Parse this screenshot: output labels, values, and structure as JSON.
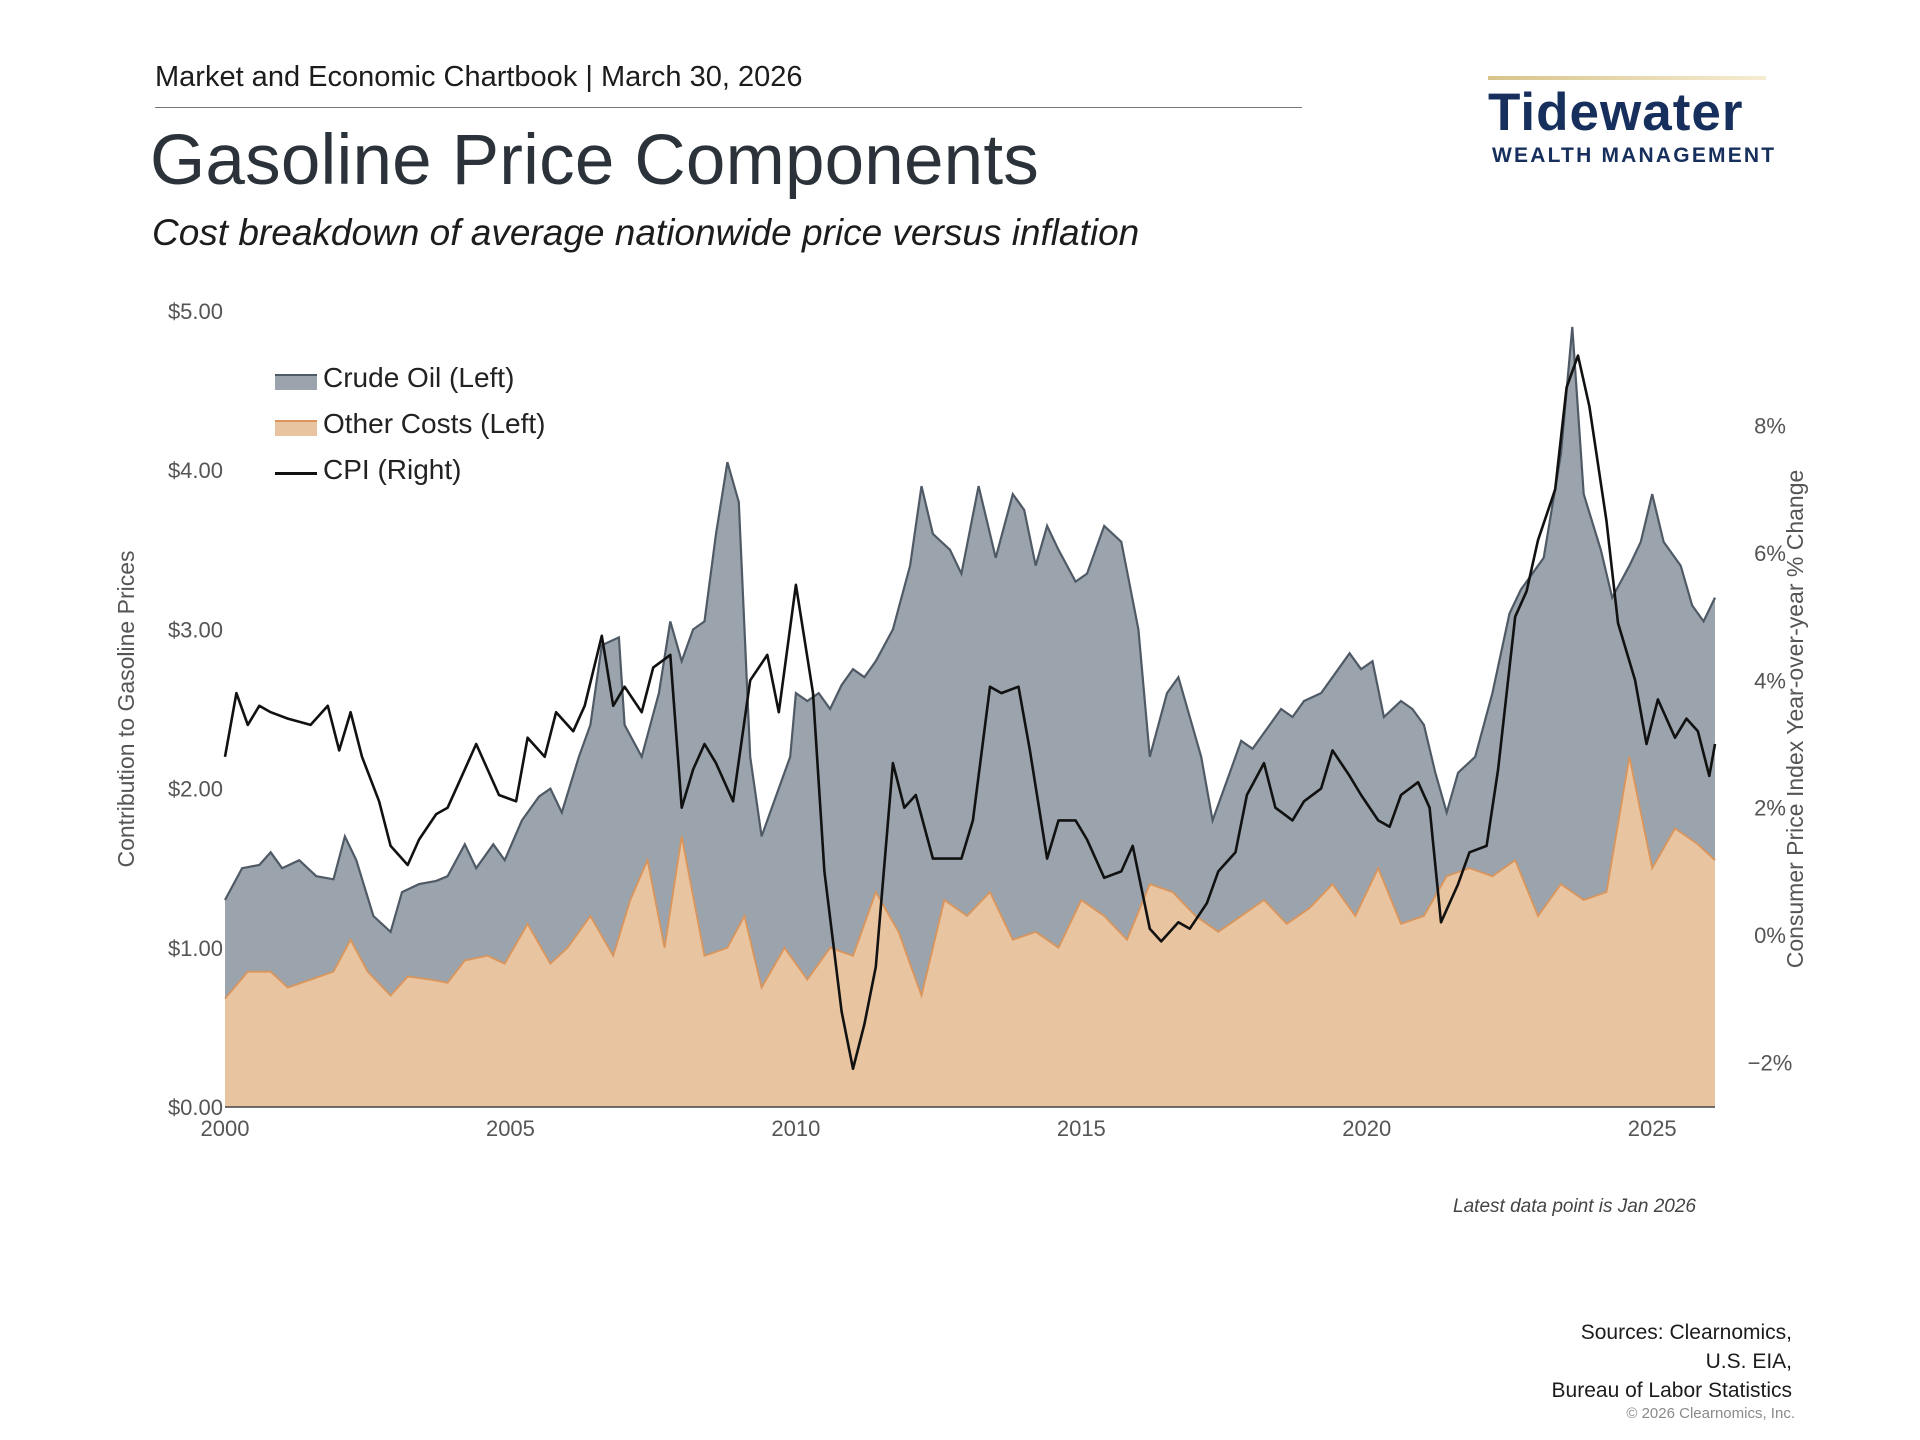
{
  "header": {
    "line": "Market and Economic Chartbook | March 30, 2026",
    "title": "Gasoline Price Components",
    "subtitle": "Cost breakdown of average nationwide price versus inflation"
  },
  "logo": {
    "name": "Tidewater",
    "tagline": "WEALTH MANAGEMENT"
  },
  "colors": {
    "crude": "#9ba4ac",
    "crude_line": "#4f5a66",
    "other": "#e9c4a0",
    "other_line": "#d9955c",
    "cpi": "#111111",
    "axis_text": "#555555"
  },
  "note": "Latest data point is Jan 2026",
  "sources": [
    "Sources: Clearnomics,",
    "U.S. EIA,",
    "Bureau of Labor Statistics"
  ],
  "copyright": "© 2026 Clearnomics, Inc.",
  "chart_data": {
    "type": "area",
    "title": "Gasoline Price Components",
    "subtitle": "Cost breakdown of average nationwide price versus inflation",
    "ylabel": "Contribution to Gasoline Prices",
    "y2label": "Consumer Price Index Year-over-year % Change",
    "xlim": [
      2000,
      2026.1
    ],
    "ylim": [
      0,
      5
    ],
    "y2lim": [
      -2.7,
      9.8
    ],
    "x_ticks": [
      "2000",
      "2005",
      "2010",
      "2015",
      "2020",
      "2025"
    ],
    "y_ticks": [
      "$0.00",
      "$1.00",
      "$2.00",
      "$3.00",
      "$4.00",
      "$5.00"
    ],
    "y2_ticks": [
      "−2%",
      "0%",
      "2%",
      "4%",
      "6%",
      "8%"
    ],
    "legend_position": "top-left",
    "grid": false,
    "series": [
      {
        "name": "Crude Oil (Left)",
        "axis": "left",
        "stack": "total",
        "points": [
          [
            2000.0,
            1.3
          ],
          [
            2000.3,
            1.5
          ],
          [
            2000.6,
            1.52
          ],
          [
            2000.8,
            1.6
          ],
          [
            2001.0,
            1.5
          ],
          [
            2001.3,
            1.55
          ],
          [
            2001.6,
            1.45
          ],
          [
            2001.9,
            1.43
          ],
          [
            2002.1,
            1.7
          ],
          [
            2002.3,
            1.55
          ],
          [
            2002.6,
            1.2
          ],
          [
            2002.9,
            1.1
          ],
          [
            2003.1,
            1.35
          ],
          [
            2003.4,
            1.4
          ],
          [
            2003.7,
            1.42
          ],
          [
            2003.9,
            1.45
          ],
          [
            2004.2,
            1.65
          ],
          [
            2004.4,
            1.5
          ],
          [
            2004.7,
            1.65
          ],
          [
            2004.9,
            1.55
          ],
          [
            2005.2,
            1.8
          ],
          [
            2005.5,
            1.95
          ],
          [
            2005.7,
            2.0
          ],
          [
            2005.9,
            1.85
          ],
          [
            2006.2,
            2.2
          ],
          [
            2006.4,
            2.4
          ],
          [
            2006.6,
            2.9
          ],
          [
            2006.9,
            2.95
          ],
          [
            2007.0,
            2.4
          ],
          [
            2007.3,
            2.2
          ],
          [
            2007.6,
            2.6
          ],
          [
            2007.8,
            3.05
          ],
          [
            2008.0,
            2.8
          ],
          [
            2008.2,
            3.0
          ],
          [
            2008.4,
            3.05
          ],
          [
            2008.6,
            3.6
          ],
          [
            2008.8,
            4.05
          ],
          [
            2009.0,
            3.8
          ],
          [
            2009.2,
            2.2
          ],
          [
            2009.4,
            1.7
          ],
          [
            2009.6,
            1.9
          ],
          [
            2009.9,
            2.2
          ],
          [
            2010.0,
            2.6
          ],
          [
            2010.2,
            2.55
          ],
          [
            2010.4,
            2.6
          ],
          [
            2010.6,
            2.5
          ],
          [
            2010.8,
            2.65
          ],
          [
            2011.0,
            2.75
          ],
          [
            2011.2,
            2.7
          ],
          [
            2011.4,
            2.8
          ],
          [
            2011.7,
            3.0
          ],
          [
            2012.0,
            3.4
          ],
          [
            2012.2,
            3.9
          ],
          [
            2012.4,
            3.6
          ],
          [
            2012.7,
            3.5
          ],
          [
            2012.9,
            3.35
          ],
          [
            2013.2,
            3.9
          ],
          [
            2013.5,
            3.45
          ],
          [
            2013.8,
            3.85
          ],
          [
            2014.0,
            3.75
          ],
          [
            2014.2,
            3.4
          ],
          [
            2014.4,
            3.65
          ],
          [
            2014.6,
            3.5
          ],
          [
            2014.9,
            3.3
          ],
          [
            2015.1,
            3.35
          ],
          [
            2015.4,
            3.65
          ],
          [
            2015.7,
            3.55
          ],
          [
            2016.0,
            3.0
          ],
          [
            2016.2,
            2.2
          ],
          [
            2016.5,
            2.6
          ],
          [
            2016.7,
            2.7
          ],
          [
            2016.9,
            2.45
          ],
          [
            2017.1,
            2.2
          ],
          [
            2017.3,
            1.8
          ],
          [
            2017.6,
            2.1
          ],
          [
            2017.8,
            2.3
          ],
          [
            2018.0,
            2.25
          ],
          [
            2018.2,
            2.35
          ],
          [
            2018.5,
            2.5
          ],
          [
            2018.7,
            2.45
          ],
          [
            2018.9,
            2.55
          ],
          [
            2019.2,
            2.6
          ],
          [
            2019.4,
            2.7
          ],
          [
            2019.7,
            2.85
          ],
          [
            2019.9,
            2.75
          ],
          [
            2020.1,
            2.8
          ],
          [
            2020.3,
            2.45
          ],
          [
            2020.6,
            2.55
          ],
          [
            2020.8,
            2.5
          ],
          [
            2021.0,
            2.4
          ],
          [
            2021.2,
            2.1
          ],
          [
            2021.4,
            1.85
          ],
          [
            2021.6,
            2.1
          ],
          [
            2021.9,
            2.2
          ],
          [
            2022.2,
            2.6
          ],
          [
            2022.5,
            3.1
          ],
          [
            2022.7,
            3.25
          ],
          [
            2022.9,
            3.35
          ],
          [
            2023.1,
            3.45
          ],
          [
            2023.4,
            4.1
          ],
          [
            2023.6,
            4.9
          ],
          [
            2023.8,
            3.85
          ],
          [
            2024.1,
            3.5
          ],
          [
            2024.3,
            3.2
          ],
          [
            2024.6,
            3.4
          ],
          [
            2024.8,
            3.55
          ],
          [
            2025.0,
            3.85
          ],
          [
            2025.2,
            3.55
          ],
          [
            2025.5,
            3.4
          ],
          [
            2025.7,
            3.15
          ],
          [
            2025.9,
            3.05
          ],
          [
            2026.1,
            3.2
          ]
        ]
      },
      {
        "name": "Other Costs (Left)",
        "axis": "left",
        "stack": "base",
        "points": [
          [
            2000.0,
            0.68
          ],
          [
            2000.4,
            0.85
          ],
          [
            2000.8,
            0.85
          ],
          [
            2001.1,
            0.75
          ],
          [
            2001.5,
            0.8
          ],
          [
            2001.9,
            0.85
          ],
          [
            2002.2,
            1.05
          ],
          [
            2002.5,
            0.85
          ],
          [
            2002.9,
            0.7
          ],
          [
            2003.2,
            0.82
          ],
          [
            2003.6,
            0.8
          ],
          [
            2003.9,
            0.78
          ],
          [
            2004.2,
            0.92
          ],
          [
            2004.6,
            0.95
          ],
          [
            2004.9,
            0.9
          ],
          [
            2005.3,
            1.15
          ],
          [
            2005.7,
            0.9
          ],
          [
            2006.0,
            1.0
          ],
          [
            2006.4,
            1.2
          ],
          [
            2006.8,
            0.95
          ],
          [
            2007.1,
            1.3
          ],
          [
            2007.4,
            1.55
          ],
          [
            2007.7,
            1.0
          ],
          [
            2008.0,
            1.7
          ],
          [
            2008.4,
            0.95
          ],
          [
            2008.8,
            1.0
          ],
          [
            2009.1,
            1.2
          ],
          [
            2009.4,
            0.75
          ],
          [
            2009.8,
            1.0
          ],
          [
            2010.2,
            0.8
          ],
          [
            2010.6,
            1.0
          ],
          [
            2011.0,
            0.95
          ],
          [
            2011.4,
            1.35
          ],
          [
            2011.8,
            1.1
          ],
          [
            2012.2,
            0.7
          ],
          [
            2012.6,
            1.3
          ],
          [
            2013.0,
            1.2
          ],
          [
            2013.4,
            1.35
          ],
          [
            2013.8,
            1.05
          ],
          [
            2014.2,
            1.1
          ],
          [
            2014.6,
            1.0
          ],
          [
            2015.0,
            1.3
          ],
          [
            2015.4,
            1.2
          ],
          [
            2015.8,
            1.05
          ],
          [
            2016.2,
            1.4
          ],
          [
            2016.6,
            1.35
          ],
          [
            2017.0,
            1.2
          ],
          [
            2017.4,
            1.1
          ],
          [
            2017.8,
            1.2
          ],
          [
            2018.2,
            1.3
          ],
          [
            2018.6,
            1.15
          ],
          [
            2019.0,
            1.25
          ],
          [
            2019.4,
            1.4
          ],
          [
            2019.8,
            1.2
          ],
          [
            2020.2,
            1.5
          ],
          [
            2020.6,
            1.15
          ],
          [
            2021.0,
            1.2
          ],
          [
            2021.4,
            1.45
          ],
          [
            2021.8,
            1.5
          ],
          [
            2022.2,
            1.45
          ],
          [
            2022.6,
            1.55
          ],
          [
            2023.0,
            1.2
          ],
          [
            2023.4,
            1.4
          ],
          [
            2023.8,
            1.3
          ],
          [
            2024.2,
            1.35
          ],
          [
            2024.6,
            2.2
          ],
          [
            2025.0,
            1.5
          ],
          [
            2025.4,
            1.75
          ],
          [
            2025.8,
            1.65
          ],
          [
            2026.1,
            1.55
          ]
        ]
      },
      {
        "name": "CPI (Right)",
        "axis": "right",
        "type": "line",
        "points": [
          [
            2000.0,
            2.8
          ],
          [
            2000.2,
            3.8
          ],
          [
            2000.4,
            3.3
          ],
          [
            2000.6,
            3.6
          ],
          [
            2000.8,
            3.5
          ],
          [
            2001.1,
            3.4
          ],
          [
            2001.5,
            3.3
          ],
          [
            2001.8,
            3.6
          ],
          [
            2002.0,
            2.9
          ],
          [
            2002.2,
            3.5
          ],
          [
            2002.4,
            2.8
          ],
          [
            2002.7,
            2.1
          ],
          [
            2002.9,
            1.4
          ],
          [
            2003.2,
            1.1
          ],
          [
            2003.4,
            1.5
          ],
          [
            2003.7,
            1.9
          ],
          [
            2003.9,
            2.0
          ],
          [
            2004.1,
            2.4
          ],
          [
            2004.4,
            3.0
          ],
          [
            2004.6,
            2.6
          ],
          [
            2004.8,
            2.2
          ],
          [
            2005.1,
            2.1
          ],
          [
            2005.3,
            3.1
          ],
          [
            2005.6,
            2.8
          ],
          [
            2005.8,
            3.5
          ],
          [
            2006.1,
            3.2
          ],
          [
            2006.3,
            3.6
          ],
          [
            2006.6,
            4.7
          ],
          [
            2006.8,
            3.6
          ],
          [
            2007.0,
            3.9
          ],
          [
            2007.3,
            3.5
          ],
          [
            2007.5,
            4.2
          ],
          [
            2007.8,
            4.4
          ],
          [
            2008.0,
            2.0
          ],
          [
            2008.2,
            2.6
          ],
          [
            2008.4,
            3.0
          ],
          [
            2008.6,
            2.7
          ],
          [
            2008.9,
            2.1
          ],
          [
            2009.2,
            4.0
          ],
          [
            2009.5,
            4.4
          ],
          [
            2009.7,
            3.5
          ],
          [
            2010.0,
            5.5
          ],
          [
            2010.3,
            3.8
          ],
          [
            2010.5,
            1.0
          ],
          [
            2010.8,
            -1.2
          ],
          [
            2011.0,
            -2.1
          ],
          [
            2011.2,
            -1.4
          ],
          [
            2011.4,
            -0.5
          ],
          [
            2011.7,
            2.7
          ],
          [
            2011.9,
            2.0
          ],
          [
            2012.1,
            2.2
          ],
          [
            2012.4,
            1.2
          ],
          [
            2012.6,
            1.2
          ],
          [
            2012.9,
            1.2
          ],
          [
            2013.1,
            1.8
          ],
          [
            2013.4,
            3.9
          ],
          [
            2013.6,
            3.8
          ],
          [
            2013.9,
            3.9
          ],
          [
            2014.1,
            2.9
          ],
          [
            2014.4,
            1.2
          ],
          [
            2014.6,
            1.8
          ],
          [
            2014.9,
            1.8
          ],
          [
            2015.1,
            1.5
          ],
          [
            2015.4,
            0.9
          ],
          [
            2015.7,
            1.0
          ],
          [
            2015.9,
            1.4
          ],
          [
            2016.2,
            0.1
          ],
          [
            2016.4,
            -0.1
          ],
          [
            2016.7,
            0.2
          ],
          [
            2016.9,
            0.1
          ],
          [
            2017.2,
            0.5
          ],
          [
            2017.4,
            1.0
          ],
          [
            2017.7,
            1.3
          ],
          [
            2017.9,
            2.2
          ],
          [
            2018.2,
            2.7
          ],
          [
            2018.4,
            2.0
          ],
          [
            2018.7,
            1.8
          ],
          [
            2018.9,
            2.1
          ],
          [
            2019.2,
            2.3
          ],
          [
            2019.4,
            2.9
          ],
          [
            2019.7,
            2.5
          ],
          [
            2019.9,
            2.2
          ],
          [
            2020.2,
            1.8
          ],
          [
            2020.4,
            1.7
          ],
          [
            2020.6,
            2.2
          ],
          [
            2020.9,
            2.4
          ],
          [
            2021.1,
            2.0
          ],
          [
            2021.3,
            0.2
          ],
          [
            2021.6,
            0.8
          ],
          [
            2021.8,
            1.3
          ],
          [
            2022.1,
            1.4
          ],
          [
            2022.3,
            2.6
          ],
          [
            2022.6,
            5.0
          ],
          [
            2022.8,
            5.4
          ],
          [
            2023.0,
            6.2
          ],
          [
            2023.3,
            7.0
          ],
          [
            2023.5,
            8.6
          ],
          [
            2023.7,
            9.1
          ],
          [
            2023.9,
            8.3
          ],
          [
            2024.2,
            6.5
          ],
          [
            2024.4,
            4.9
          ],
          [
            2024.7,
            4.0
          ],
          [
            2024.9,
            3.0
          ],
          [
            2025.1,
            3.7
          ],
          [
            2025.4,
            3.1
          ],
          [
            2025.6,
            3.4
          ],
          [
            2025.8,
            3.2
          ],
          [
            2026.0,
            2.5
          ],
          [
            2026.1,
            3.0
          ]
        ]
      }
    ]
  }
}
